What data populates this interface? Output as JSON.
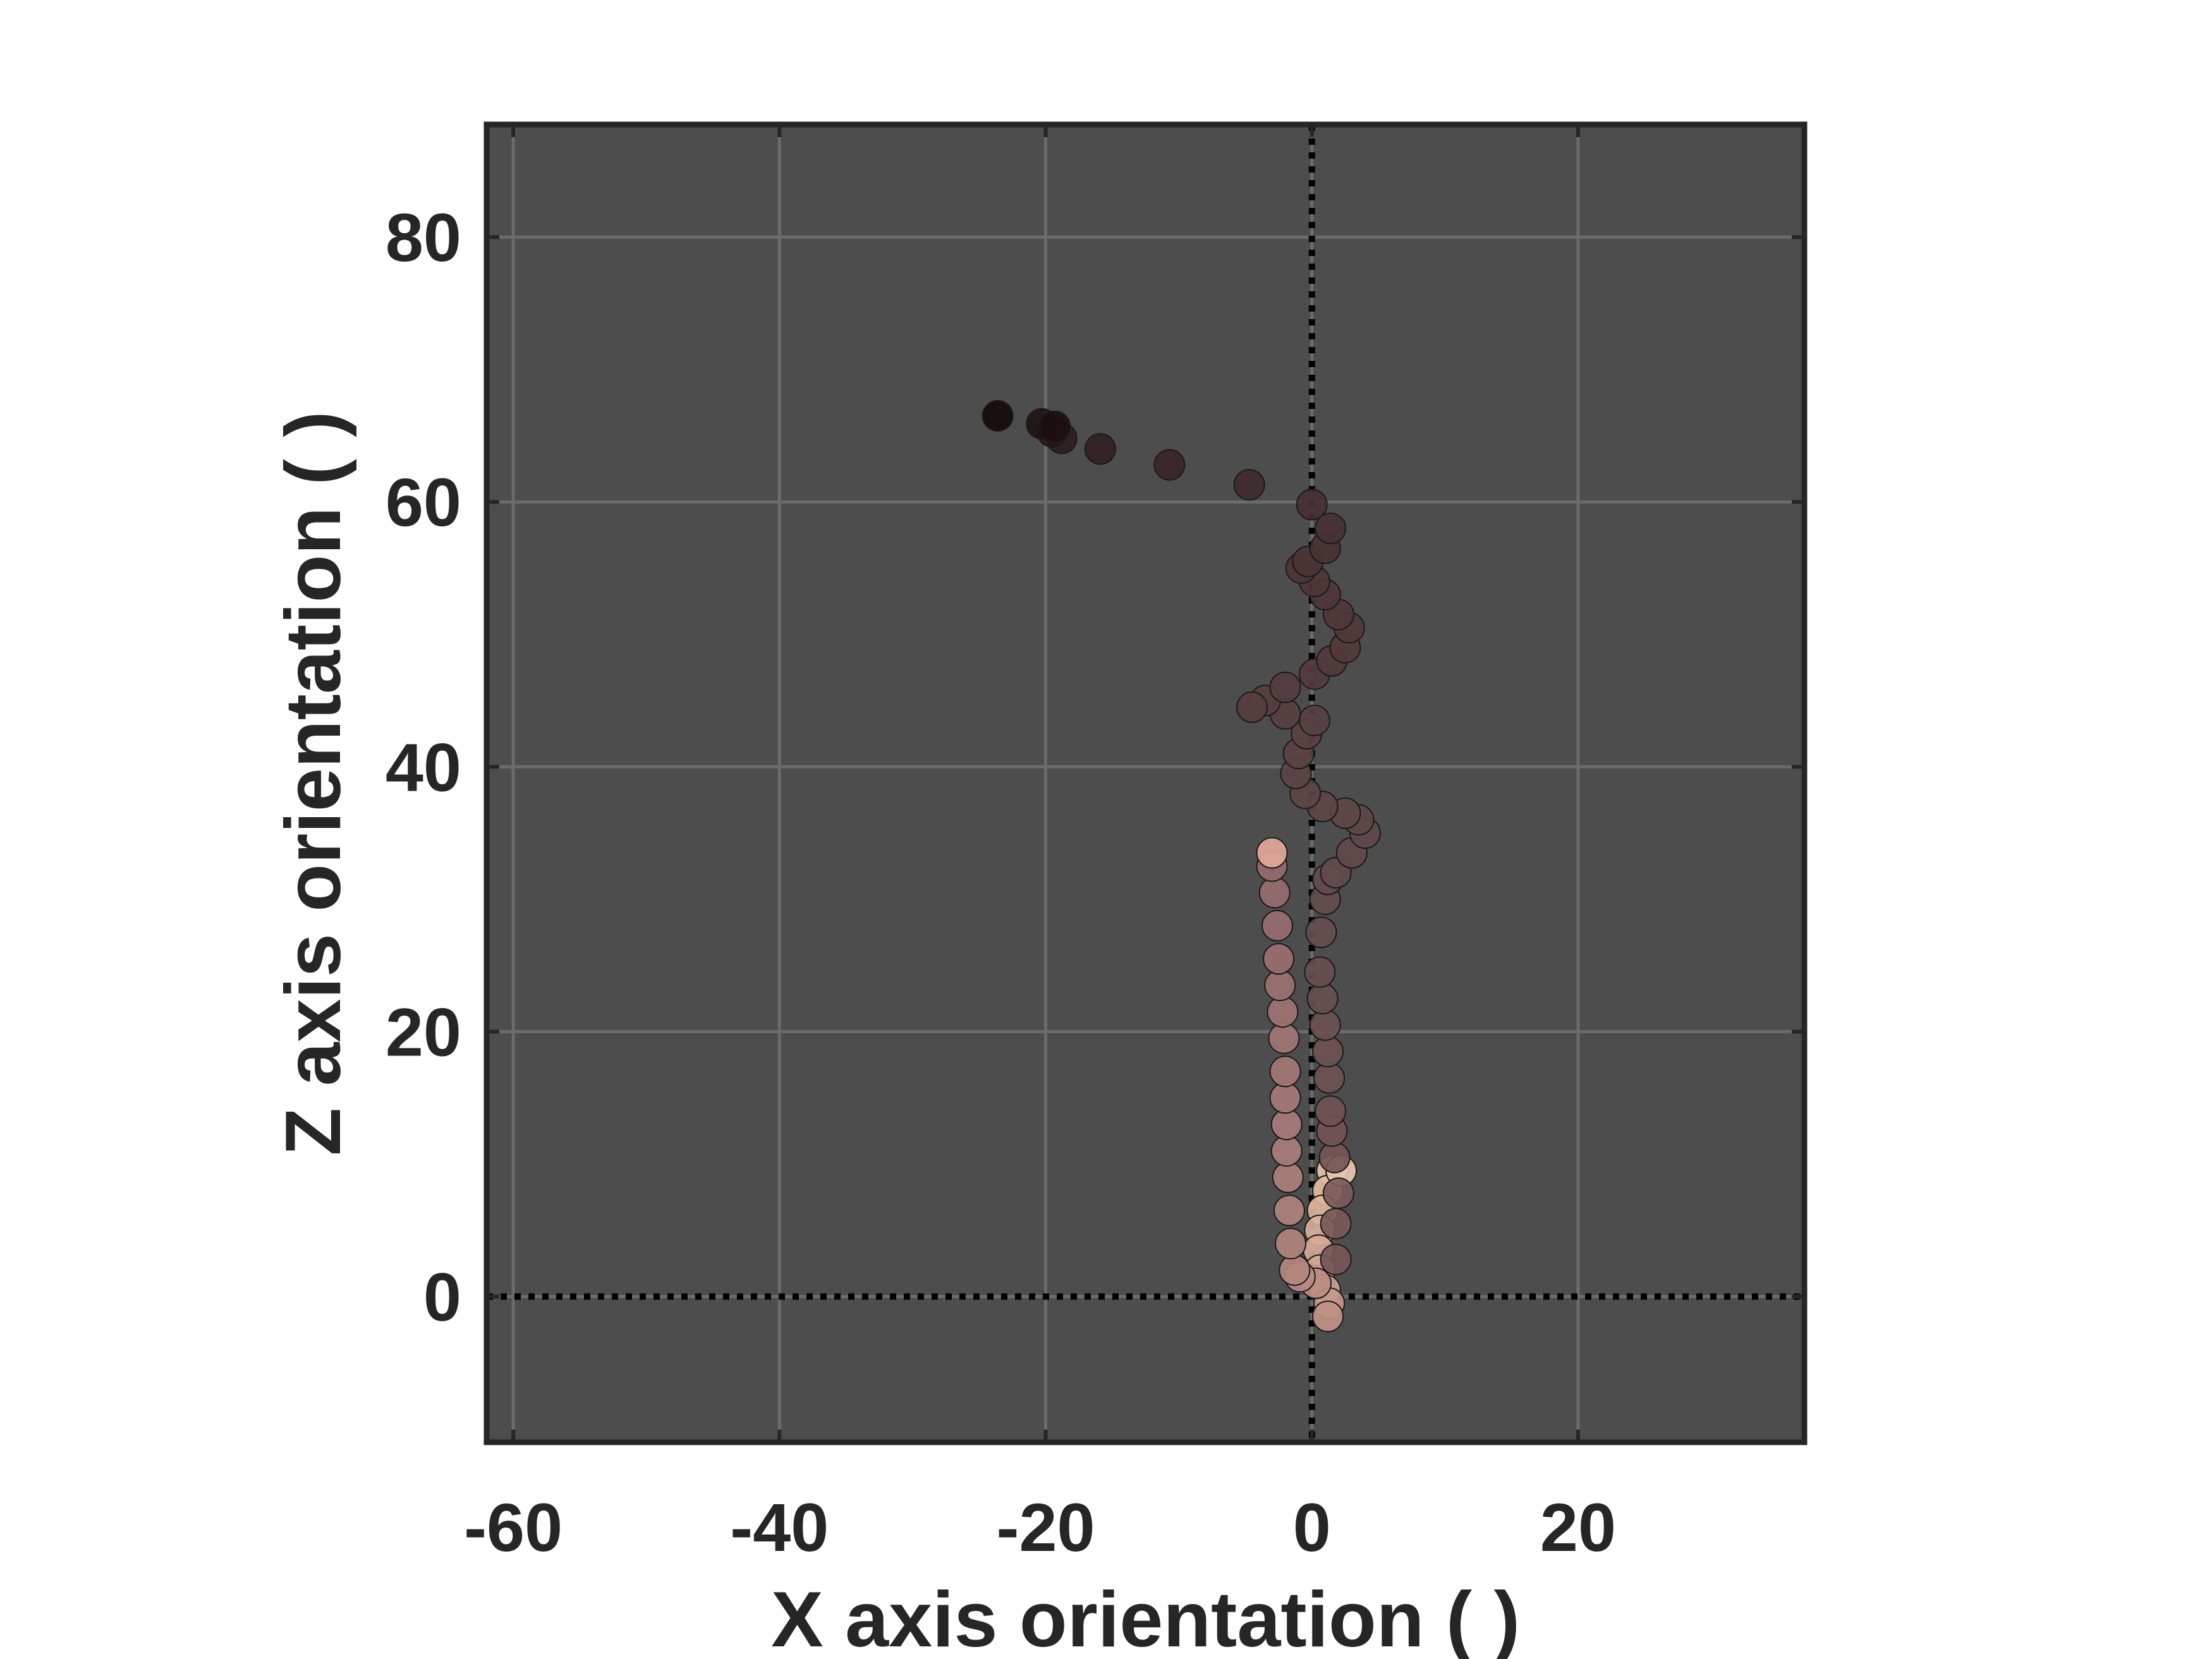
{
  "chart_data": {
    "type": "scatter",
    "title": "",
    "xlabel": "X axis orientation (  )",
    "ylabel": "Z axis orientation (  )",
    "xlim": [
      -62,
      37
    ],
    "ylim": [
      -11,
      88.5
    ],
    "x_ticks": [
      -60,
      -40,
      -20,
      0,
      20
    ],
    "y_ticks": [
      0,
      20,
      40,
      60,
      80
    ],
    "grid": true,
    "background_color": "#4d4d4d",
    "grid_color": "#6b6b6b",
    "reference_lines": [
      {
        "orientation": "vertical",
        "value": 0,
        "style": "dotted",
        "color": "#000000"
      },
      {
        "orientation": "horizontal",
        "value": 0,
        "style": "dotted",
        "color": "#000000"
      }
    ],
    "color_encoding": "sequential: light peach (start) to near-black (end)",
    "series": [
      {
        "points": [
          {
            "x": 1.5,
            "y": 9.5,
            "color": "#e6c2a8"
          },
          {
            "x": 1.2,
            "y": 8.0,
            "color": "#e2bba2"
          },
          {
            "x": 0.8,
            "y": 6.5,
            "color": "#deb59e"
          },
          {
            "x": 0.6,
            "y": 5.0,
            "color": "#dab09a"
          },
          {
            "x": 0.5,
            "y": 3.5,
            "color": "#d6aa96"
          },
          {
            "x": 0.6,
            "y": 2.0,
            "color": "#d2a492"
          },
          {
            "x": 1.0,
            "y": 0.5,
            "color": "#cc9e8e"
          },
          {
            "x": 1.3,
            "y": -0.5,
            "color": "#c69889"
          },
          {
            "x": 1.2,
            "y": -1.5,
            "color": "#c09285"
          },
          {
            "x": 0.3,
            "y": 1.0,
            "color": "#bc8e82"
          },
          {
            "x": -0.9,
            "y": 1.5,
            "color": "#b88a80"
          },
          {
            "x": -1.3,
            "y": 2.0,
            "color": "#b4877e"
          },
          {
            "x": -1.6,
            "y": 4.0,
            "color": "#b1847c"
          },
          {
            "x": -1.7,
            "y": 6.5,
            "color": "#ae827b"
          },
          {
            "x": -1.8,
            "y": 9.0,
            "color": "#ab7f79"
          },
          {
            "x": -1.9,
            "y": 11.0,
            "color": "#a97d78"
          },
          {
            "x": -1.9,
            "y": 13.0,
            "color": "#a77b77"
          },
          {
            "x": -2.0,
            "y": 15.0,
            "color": "#a57976"
          },
          {
            "x": -2.0,
            "y": 17.0,
            "color": "#a37775"
          },
          {
            "x": -2.1,
            "y": 19.5,
            "color": "#a07574"
          },
          {
            "x": -2.2,
            "y": 21.5,
            "color": "#9e7373"
          },
          {
            "x": -2.4,
            "y": 23.5,
            "color": "#9c7172"
          },
          {
            "x": -2.5,
            "y": 25.5,
            "color": "#9a6f71"
          },
          {
            "x": -2.6,
            "y": 28.0,
            "color": "#986d70"
          },
          {
            "x": -2.8,
            "y": 30.5,
            "color": "#976c6f"
          },
          {
            "x": -3.0,
            "y": 32.5,
            "color": "#956a6e"
          },
          {
            "x": -3.0,
            "y": 33.5,
            "color": "#e2a898"
          },
          {
            "x": 2.2,
            "y": 9.5,
            "color": "#e8c6ae"
          },
          {
            "x": 2.0,
            "y": 7.8,
            "color": "#7a5a5c"
          },
          {
            "x": 1.8,
            "y": 5.5,
            "color": "#785859"
          },
          {
            "x": 1.8,
            "y": 2.8,
            "color": "#765657"
          },
          {
            "x": 1.7,
            "y": 10.5,
            "color": "#745556"
          },
          {
            "x": 1.5,
            "y": 12.5,
            "color": "#725455"
          },
          {
            "x": 1.4,
            "y": 14.0,
            "color": "#705354"
          },
          {
            "x": 1.3,
            "y": 16.5,
            "color": "#6e5253"
          },
          {
            "x": 1.2,
            "y": 18.5,
            "color": "#6c5152"
          },
          {
            "x": 1.0,
            "y": 20.5,
            "color": "#6a5051"
          },
          {
            "x": 0.8,
            "y": 22.5,
            "color": "#684f50"
          },
          {
            "x": 0.6,
            "y": 24.5,
            "color": "#674e4f"
          },
          {
            "x": 0.7,
            "y": 27.5,
            "color": "#664d4e"
          },
          {
            "x": 1.0,
            "y": 30.0,
            "color": "#654c4d"
          },
          {
            "x": 1.2,
            "y": 31.5,
            "color": "#644b4c"
          },
          {
            "x": 1.8,
            "y": 32.0,
            "color": "#634a4b"
          },
          {
            "x": 3.0,
            "y": 33.5,
            "color": "#62494a"
          },
          {
            "x": 4.0,
            "y": 35.0,
            "color": "#614849"
          },
          {
            "x": 3.5,
            "y": 36.0,
            "color": "#604748"
          },
          {
            "x": 2.5,
            "y": 36.5,
            "color": "#5f4647"
          },
          {
            "x": 0.8,
            "y": 37.0,
            "color": "#5e4546"
          },
          {
            "x": -0.5,
            "y": 38.0,
            "color": "#5d4445"
          },
          {
            "x": -1.2,
            "y": 39.5,
            "color": "#5c4344"
          },
          {
            "x": -1.0,
            "y": 41.0,
            "color": "#5b4243"
          },
          {
            "x": -0.4,
            "y": 42.5,
            "color": "#5a4142"
          },
          {
            "x": 0.2,
            "y": 43.5,
            "color": "#594041"
          },
          {
            "x": -2.0,
            "y": 44.0,
            "color": "#583f40"
          },
          {
            "x": -3.5,
            "y": 45.0,
            "color": "#573e3f"
          },
          {
            "x": -4.5,
            "y": 44.5,
            "color": "#563d3e"
          },
          {
            "x": -2.0,
            "y": 46.0,
            "color": "#553c3d"
          },
          {
            "x": 0.2,
            "y": 47.0,
            "color": "#543b3c"
          },
          {
            "x": 1.5,
            "y": 48.0,
            "color": "#533a3b"
          },
          {
            "x": 2.5,
            "y": 49.0,
            "color": "#52393a"
          },
          {
            "x": 2.8,
            "y": 50.5,
            "color": "#513839"
          },
          {
            "x": 2.0,
            "y": 51.5,
            "color": "#503738"
          },
          {
            "x": 1.0,
            "y": 53.0,
            "color": "#4f3637"
          },
          {
            "x": 0.2,
            "y": 54.0,
            "color": "#4e3536"
          },
          {
            "x": -0.8,
            "y": 55.0,
            "color": "#4d3435"
          },
          {
            "x": -0.3,
            "y": 55.5,
            "color": "#4b3334"
          },
          {
            "x": 1.0,
            "y": 56.5,
            "color": "#493233"
          },
          {
            "x": 1.4,
            "y": 58.0,
            "color": "#473132"
          },
          {
            "x": 0.0,
            "y": 59.8,
            "color": "#453031"
          },
          {
            "x": -4.7,
            "y": 61.3,
            "color": "#3f2b2c"
          },
          {
            "x": -10.7,
            "y": 62.8,
            "color": "#392627"
          },
          {
            "x": -15.9,
            "y": 64.0,
            "color": "#332122"
          },
          {
            "x": -18.8,
            "y": 64.8,
            "color": "#2d1c1d"
          },
          {
            "x": -19.5,
            "y": 65.3,
            "color": "#271718"
          },
          {
            "x": -20.3,
            "y": 65.9,
            "color": "#211213"
          },
          {
            "x": -19.3,
            "y": 65.7,
            "color": "#1c0e0f"
          },
          {
            "x": -23.6,
            "y": 66.5,
            "color": "#160a0b"
          }
        ]
      }
    ]
  }
}
